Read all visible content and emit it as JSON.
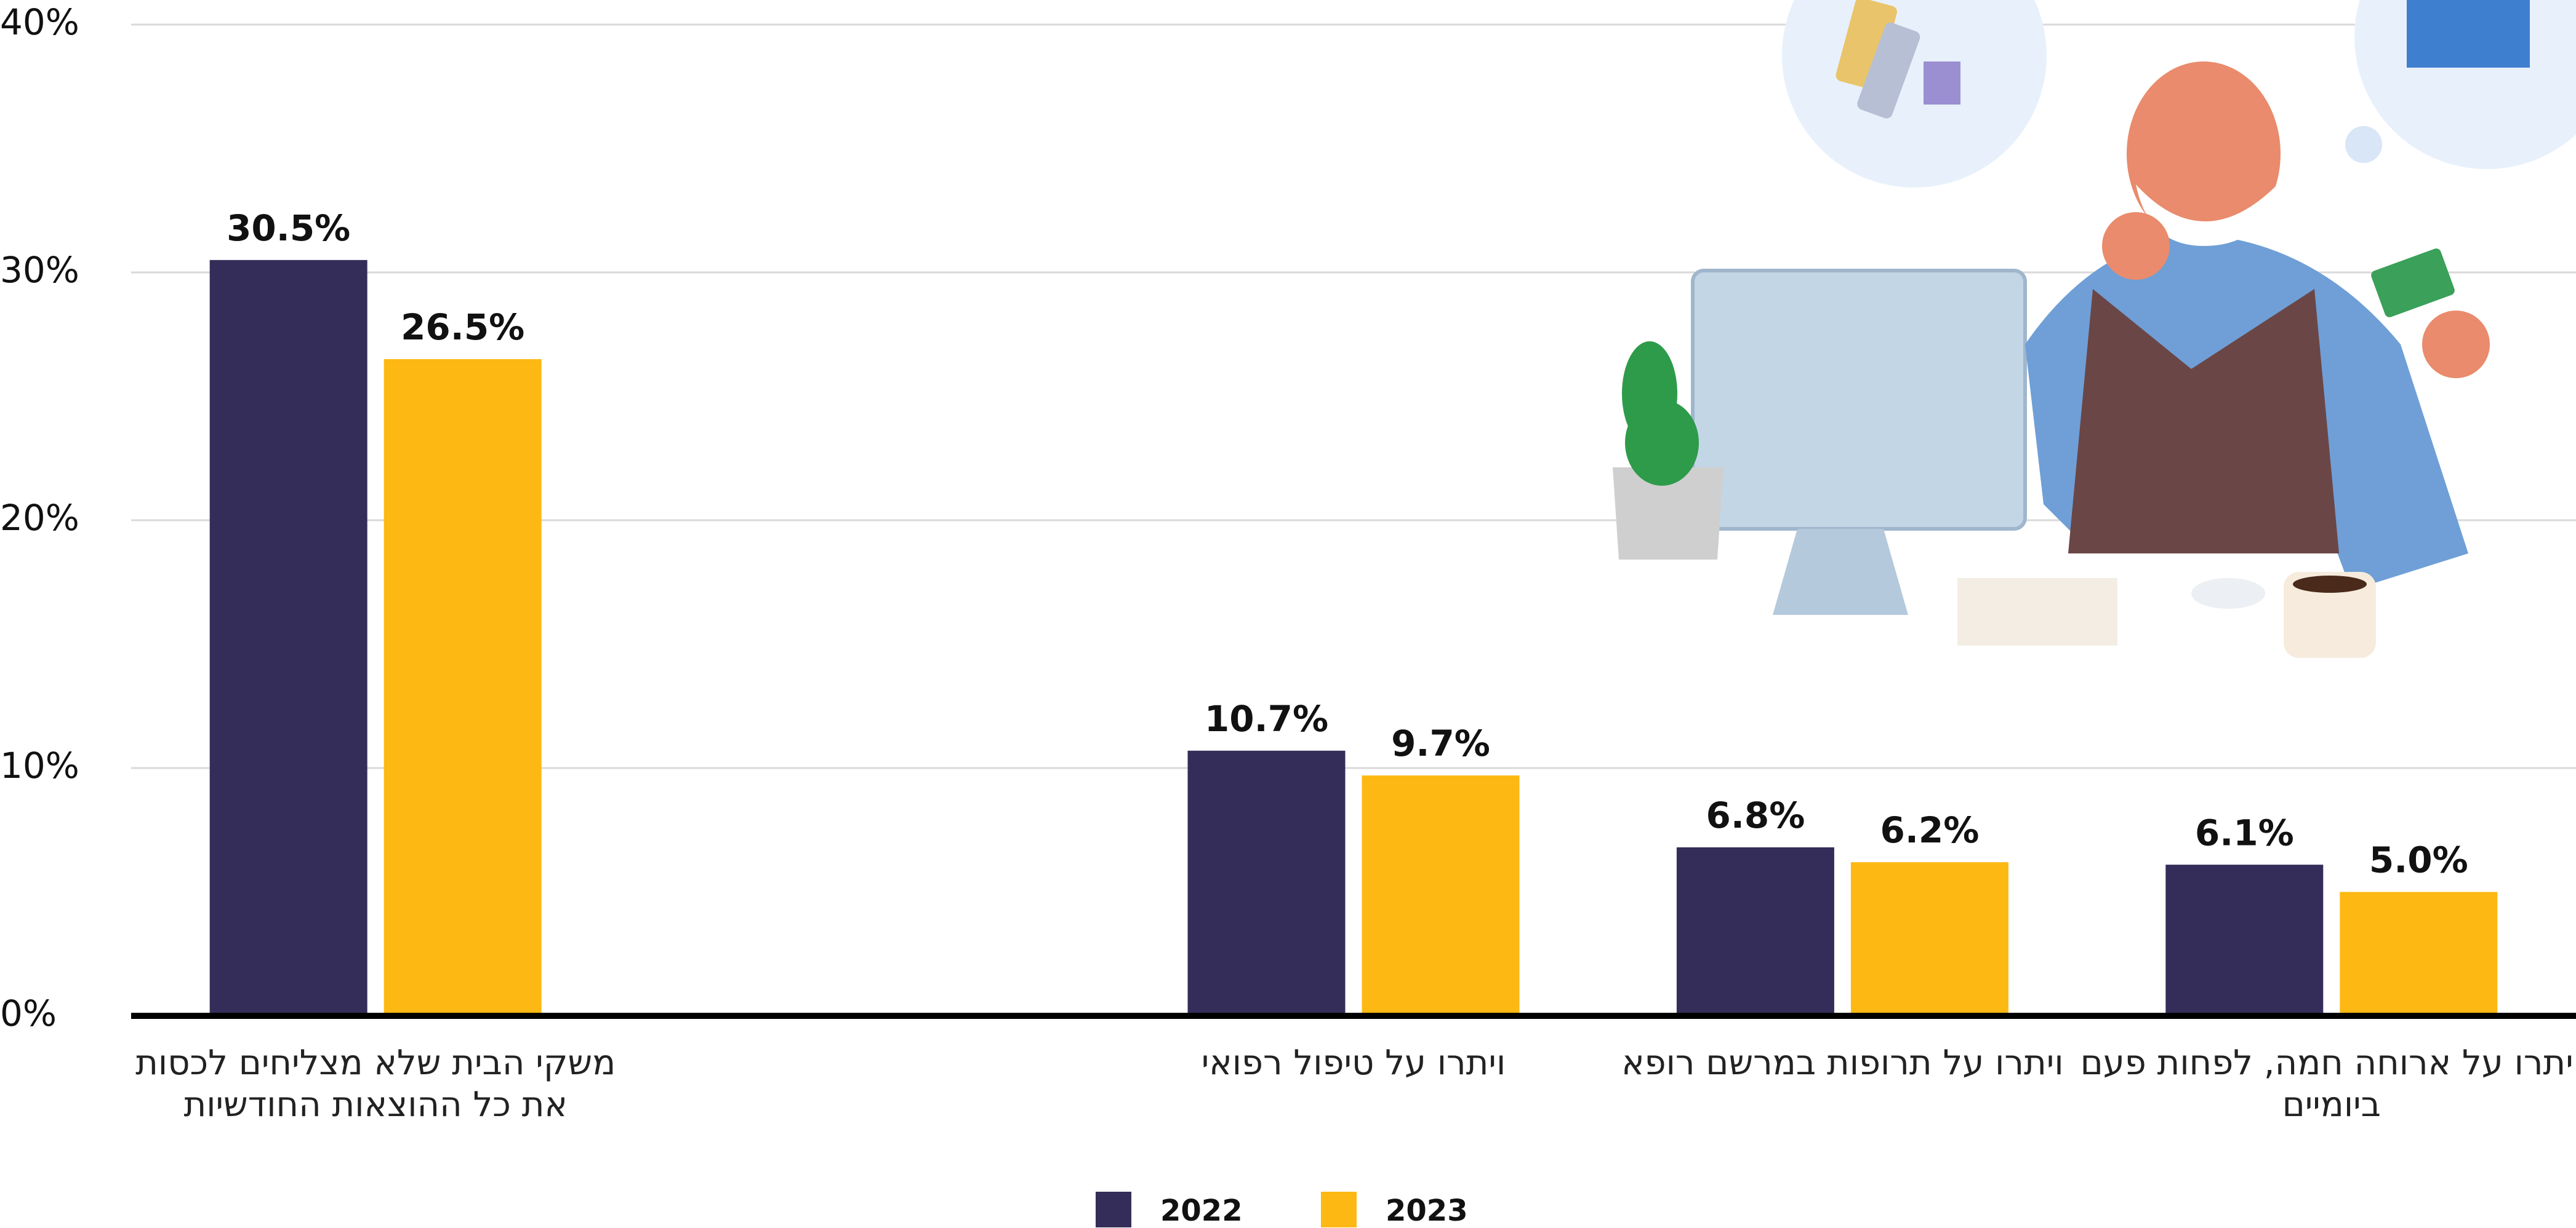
{
  "chart_data": {
    "type": "bar",
    "categories": [
      "משקי הבית שלא מצליחים לכסות את כל ההוצאות החודשיות",
      null,
      "ויתרו על טיפול רפואי",
      "ויתרו על תרופות במרשם רופא",
      "ויתרו על ארוחה חמה, לפחות פעם ביומיים"
    ],
    "series": [
      {
        "name": "2022",
        "color": "#352d59",
        "values": [
          30.5,
          null,
          10.7,
          6.8,
          6.1
        ],
        "value_labels": [
          "30.5%",
          null,
          "10.7%",
          "6.8%",
          "6.1%"
        ]
      },
      {
        "name": "2023",
        "color": "#fdb813",
        "values": [
          26.5,
          null,
          9.7,
          6.2,
          5.0
        ],
        "value_labels": [
          "26.5%",
          null,
          "9.7%",
          "6.2%",
          "5.0%"
        ]
      }
    ],
    "ylim": [
      0,
      40
    ],
    "yticks": [
      {
        "value": 0,
        "label": "0%"
      },
      {
        "value": 10,
        "label": "10%"
      },
      {
        "value": 20,
        "label": "20%"
      },
      {
        "value": 30,
        "label": "30%"
      },
      {
        "value": 40,
        "label": "40%"
      }
    ],
    "grid": true,
    "legend": "bottom"
  }
}
